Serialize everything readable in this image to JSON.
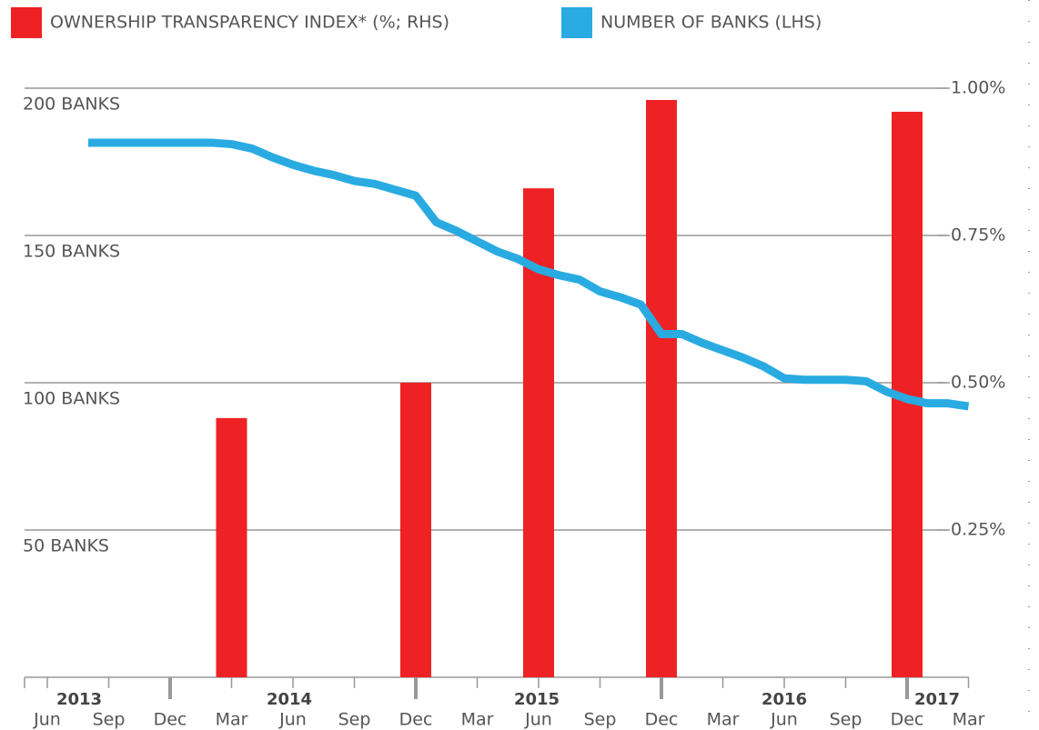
{
  "chart_data": {
    "type": "combo",
    "categories": [
      "Jun",
      null,
      null,
      "Sep",
      null,
      null,
      "Dec",
      null,
      null,
      "Mar",
      null,
      null,
      "Jun",
      null,
      null,
      "Sep",
      null,
      null,
      "Dec",
      null,
      null,
      "Mar",
      null,
      null,
      "Jun",
      null,
      null,
      "Sep",
      null,
      null,
      "Dec",
      null,
      null,
      "Mar",
      null,
      null,
      "Jun",
      null,
      null,
      "Sep",
      null,
      null,
      "Dec",
      null,
      null,
      "Mar"
    ],
    "year_labels": [
      "2013",
      "2014",
      "2015",
      "2016",
      "2017"
    ],
    "series": [
      {
        "name": "OWNERSHIP TRANSPARENCY INDEX* (%; RHS)",
        "type": "bar",
        "axis": "y2",
        "color": "#ee2224",
        "values": [
          null,
          null,
          null,
          null,
          null,
          null,
          null,
          null,
          null,
          0.44,
          null,
          null,
          null,
          null,
          null,
          null,
          null,
          null,
          0.5,
          null,
          null,
          null,
          null,
          null,
          0.83,
          null,
          null,
          null,
          null,
          null,
          0.98,
          null,
          null,
          null,
          null,
          null,
          null,
          null,
          null,
          null,
          null,
          null,
          0.96,
          null,
          null,
          null
        ]
      },
      {
        "name": "NUMBER OF BANKS (LHS)",
        "type": "line",
        "axis": "y",
        "color": "#29abe2",
        "values": [
          null,
          null,
          181.5,
          181.5,
          181.5,
          181.5,
          181.5,
          181.5,
          181.5,
          181,
          179.5,
          176.5,
          174,
          172,
          170.5,
          168.5,
          167.5,
          165.5,
          163.5,
          154.5,
          151.5,
          148,
          144.5,
          142,
          138.5,
          136.5,
          135,
          131,
          129,
          126.5,
          116.5,
          116.5,
          113.5,
          111,
          108.5,
          105.5,
          101.5,
          101,
          101,
          101,
          100.5,
          97,
          94.5,
          93,
          93,
          92
        ]
      }
    ],
    "ylim": [
      0,
      200
    ],
    "yticks": [
      {
        "value": 50,
        "label": "50 BANKS"
      },
      {
        "value": 100,
        "label": "100 BANKS"
      },
      {
        "value": 150,
        "label": "150 BANKS"
      },
      {
        "value": 200,
        "label": "200 BANKS"
      }
    ],
    "y2lim": [
      0,
      1
    ],
    "y2ticks": [
      {
        "value": 0.25,
        "label": "0.25%"
      },
      {
        "value": 0.5,
        "label": "0.50%"
      },
      {
        "value": 0.75,
        "label": "0.75%"
      },
      {
        "value": 1,
        "label": "1.00%"
      }
    ],
    "grid": true,
    "legend": "top-left"
  }
}
